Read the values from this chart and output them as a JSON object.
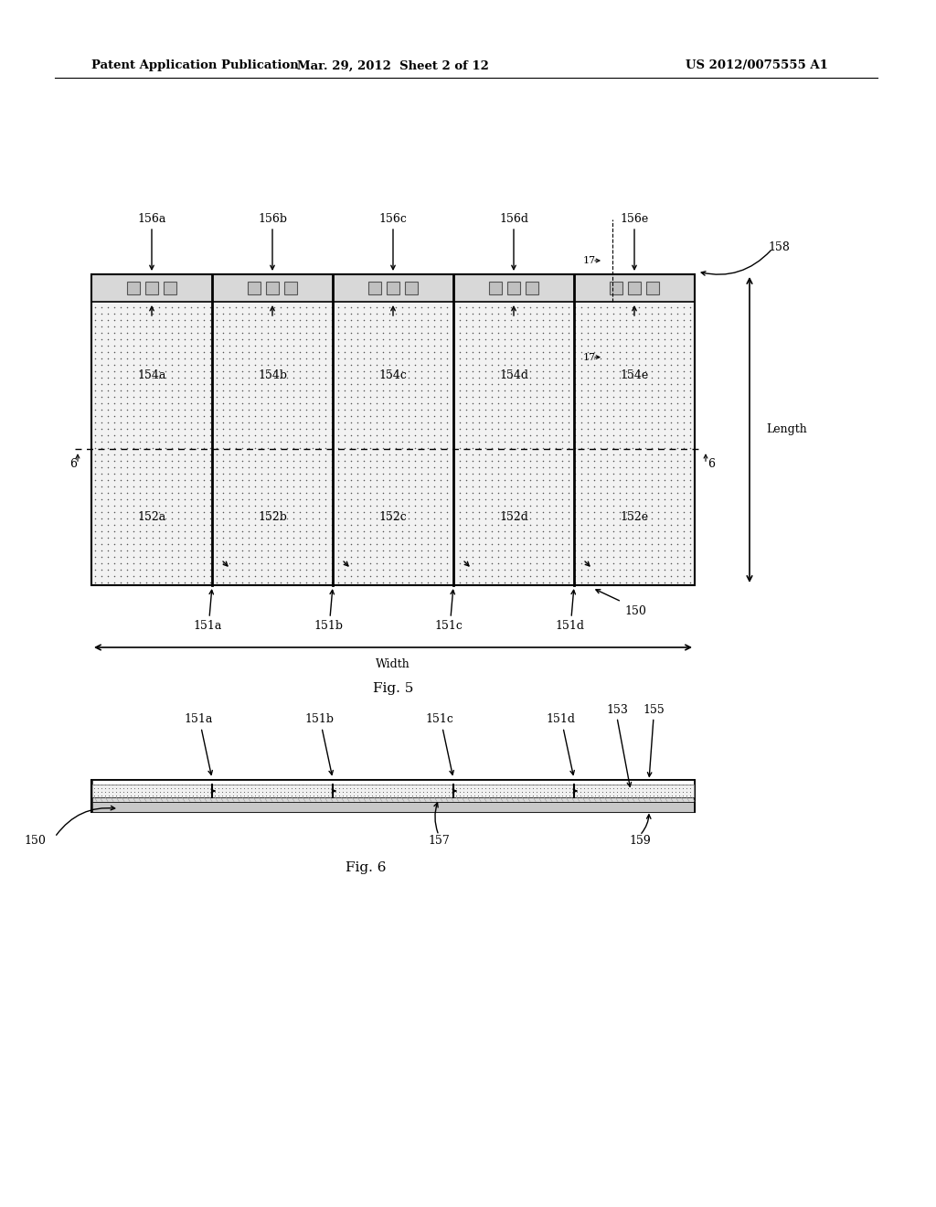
{
  "header_left": "Patent Application Publication",
  "header_mid": "Mar. 29, 2012  Sheet 2 of 12",
  "header_right": "US 2012/0075555 A1",
  "bg_color": "#ffffff",
  "fig5_label": "Fig. 5",
  "fig6_label": "Fig. 6"
}
